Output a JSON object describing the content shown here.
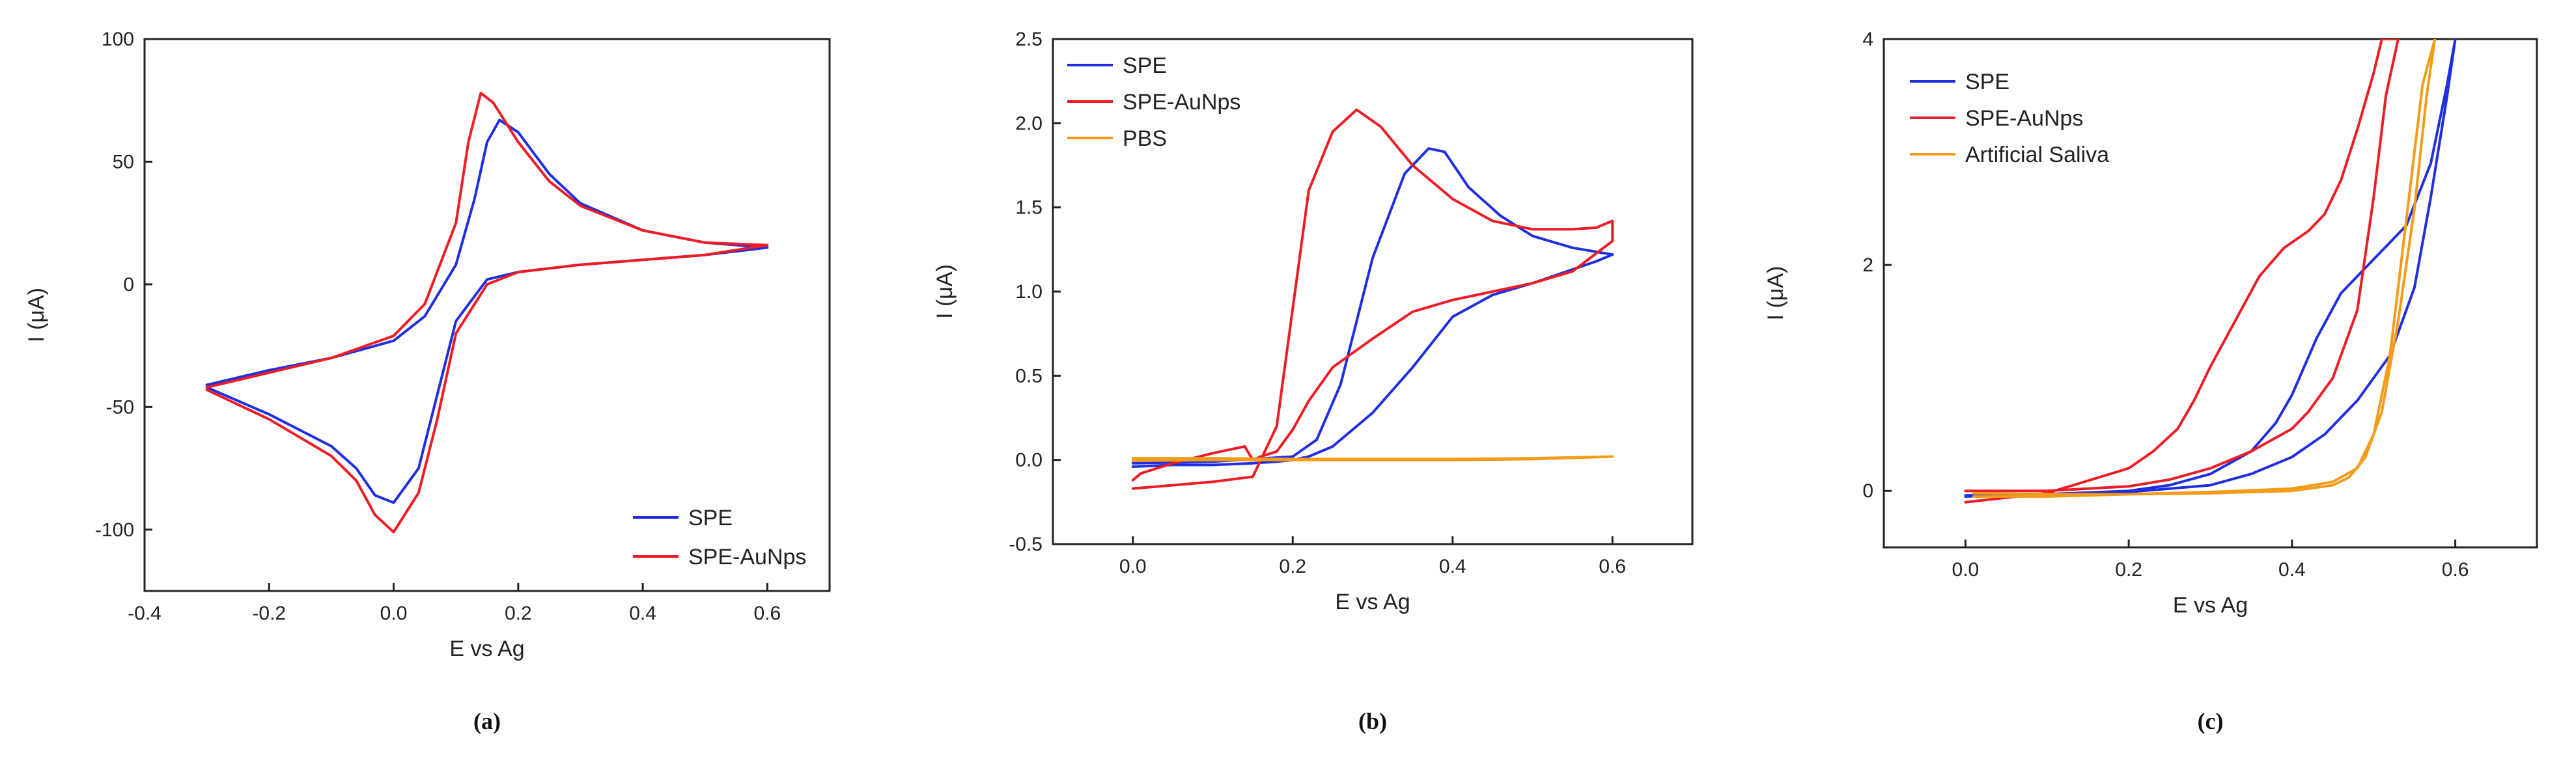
{
  "colors": {
    "blue": "#1f2fe0",
    "red": "#ee1c24",
    "orange": "#f39b1a"
  },
  "chart_data": [
    {
      "type": "line",
      "panel_label": "(a)",
      "xlabel": "E vs Ag",
      "ylabel": "I (μA)",
      "xlim": [
        -0.4,
        0.7
      ],
      "ylim": [
        -125,
        100
      ],
      "xticks": [
        -0.4,
        -0.2,
        0.0,
        0.2,
        0.4,
        0.6
      ],
      "xtick_labels": [
        "-0.4",
        "-0.2",
        "0.0",
        "0.2",
        "0.4",
        "0.6"
      ],
      "yticks": [
        -100,
        -50,
        0,
        50,
        100
      ],
      "ytick_labels": [
        "-100",
        "-50",
        "0",
        "50",
        "100"
      ],
      "legend_position": "bottom-right",
      "series": [
        {
          "name": "SPE",
          "color": "#1f2fe0",
          "x": [
            -0.3,
            -0.2,
            -0.1,
            0.0,
            0.05,
            0.1,
            0.13,
            0.15,
            0.17,
            0.2,
            0.25,
            0.3,
            0.4,
            0.5,
            0.6,
            0.5,
            0.4,
            0.3,
            0.2,
            0.15,
            0.1,
            0.07,
            0.04,
            0.0,
            -0.03,
            -0.06,
            -0.1,
            -0.2,
            -0.3
          ],
          "y": [
            -41,
            -35,
            -30,
            -23,
            -13,
            8,
            35,
            58,
            67,
            62,
            45,
            33,
            22,
            17,
            15,
            12,
            10,
            8,
            5,
            2,
            -15,
            -45,
            -75,
            -89,
            -86,
            -75,
            -66,
            -53,
            -42
          ]
        },
        {
          "name": "SPE-AuNps",
          "color": "#ee1c24",
          "x": [
            -0.3,
            -0.2,
            -0.1,
            0.0,
            0.05,
            0.1,
            0.12,
            0.14,
            0.16,
            0.2,
            0.25,
            0.3,
            0.4,
            0.5,
            0.6,
            0.5,
            0.4,
            0.3,
            0.2,
            0.15,
            0.1,
            0.07,
            0.04,
            0.0,
            -0.03,
            -0.06,
            -0.1,
            -0.2,
            -0.3
          ],
          "y": [
            -42,
            -36,
            -30,
            -21,
            -8,
            25,
            58,
            78,
            74,
            58,
            42,
            32,
            22,
            17,
            16,
            12,
            10,
            8,
            5,
            0,
            -20,
            -55,
            -85,
            -101,
            -94,
            -80,
            -70,
            -55,
            -43
          ]
        }
      ]
    },
    {
      "type": "line",
      "panel_label": "(b)",
      "xlabel": "E vs Ag",
      "ylabel": "I (μA)",
      "xlim": [
        -0.1,
        0.7
      ],
      "ylim": [
        -0.5,
        2.5
      ],
      "xticks": [
        0.0,
        0.2,
        0.4,
        0.6
      ],
      "xtick_labels": [
        "0.0",
        "0.2",
        "0.4",
        "0.6"
      ],
      "yticks": [
        -0.5,
        0.0,
        0.5,
        1.0,
        1.5,
        2.0,
        2.5
      ],
      "ytick_labels": [
        "-0.5",
        "0.0",
        "0.5",
        "1.0",
        "1.5",
        "2.0",
        "2.5"
      ],
      "legend_position": "top-left",
      "series": [
        {
          "name": "SPE",
          "color": "#1f2fe0",
          "x": [
            0.0,
            0.1,
            0.2,
            0.23,
            0.26,
            0.3,
            0.34,
            0.37,
            0.39,
            0.42,
            0.46,
            0.5,
            0.55,
            0.6,
            0.58,
            0.5,
            0.45,
            0.4,
            0.35,
            0.3,
            0.25,
            0.22,
            0.2,
            0.18,
            0.15,
            0.1,
            0.05,
            0.0
          ],
          "y": [
            -0.02,
            -0.01,
            0.02,
            0.12,
            0.45,
            1.2,
            1.7,
            1.85,
            1.83,
            1.62,
            1.45,
            1.33,
            1.26,
            1.22,
            1.18,
            1.05,
            0.98,
            0.85,
            0.55,
            0.28,
            0.08,
            0.02,
            0.0,
            -0.01,
            -0.02,
            -0.03,
            -0.03,
            -0.04
          ]
        },
        {
          "name": "SPE-AuNps",
          "color": "#ee1c24",
          "x": [
            0.0,
            0.05,
            0.1,
            0.15,
            0.18,
            0.2,
            0.22,
            0.25,
            0.28,
            0.31,
            0.35,
            0.4,
            0.45,
            0.5,
            0.55,
            0.58,
            0.6,
            0.6,
            0.55,
            0.5,
            0.45,
            0.4,
            0.35,
            0.3,
            0.25,
            0.22,
            0.2,
            0.18,
            0.16,
            0.15,
            0.14,
            0.12,
            0.1,
            0.05,
            0.01,
            0.0
          ],
          "y": [
            -0.17,
            -0.15,
            -0.13,
            -0.1,
            0.2,
            0.9,
            1.6,
            1.95,
            2.08,
            1.98,
            1.75,
            1.55,
            1.42,
            1.37,
            1.37,
            1.38,
            1.42,
            1.3,
            1.12,
            1.05,
            1.0,
            0.95,
            0.88,
            0.72,
            0.55,
            0.35,
            0.18,
            0.05,
            0.02,
            0.0,
            0.08,
            0.06,
            0.04,
            -0.02,
            -0.08,
            -0.12
          ]
        },
        {
          "name": "PBS",
          "color": "#f39b1a",
          "x": [
            0.0,
            0.1,
            0.2,
            0.3,
            0.4,
            0.5,
            0.6,
            0.5,
            0.4,
            0.3,
            0.2,
            0.1,
            0.0
          ],
          "y": [
            0.01,
            0.01,
            0.005,
            0.005,
            0.005,
            0.01,
            0.02,
            0.005,
            0.0,
            0.0,
            0.0,
            0.0,
            -0.005
          ]
        }
      ]
    },
    {
      "type": "line",
      "panel_label": "(c)",
      "xlabel": "E vs Ag",
      "ylabel": "I (μA)",
      "xlim": [
        -0.1,
        0.7
      ],
      "ylim": [
        -0.5,
        4
      ],
      "xticks": [
        0.0,
        0.2,
        0.4,
        0.6
      ],
      "xtick_labels": [
        "0.0",
        "0.2",
        "0.4",
        "0.6"
      ],
      "yticks": [
        0,
        2,
        4
      ],
      "ytick_labels": [
        "0",
        "2",
        "4"
      ],
      "legend_position": "top-left",
      "series": [
        {
          "name": "SPE",
          "color": "#1f2fe0",
          "x": [
            0.0,
            0.1,
            0.2,
            0.25,
            0.3,
            0.35,
            0.38,
            0.4,
            0.43,
            0.46,
            0.5,
            0.54,
            0.57,
            0.59,
            0.6,
            0.59,
            0.57,
            0.55,
            0.52,
            0.48,
            0.44,
            0.4,
            0.35,
            0.3,
            0.2,
            0.1,
            0.0
          ],
          "y": [
            -0.05,
            -0.03,
            0.0,
            0.05,
            0.15,
            0.35,
            0.6,
            0.85,
            1.35,
            1.75,
            2.05,
            2.35,
            2.9,
            3.6,
            4.0,
            3.5,
            2.6,
            1.8,
            1.2,
            0.8,
            0.5,
            0.3,
            0.15,
            0.05,
            -0.01,
            -0.03,
            -0.04
          ]
        },
        {
          "name": "SPE-AuNps",
          "color": "#ee1c24",
          "x": [
            0.0,
            0.1,
            0.2,
            0.23,
            0.26,
            0.28,
            0.3,
            0.33,
            0.36,
            0.39,
            0.42,
            0.44,
            0.46,
            0.48,
            0.5,
            0.51,
            0.52,
            0.53,
            0.515,
            0.5,
            0.48,
            0.45,
            0.42,
            0.4,
            0.35,
            0.3,
            0.25,
            0.2,
            0.1,
            0.0
          ],
          "y": [
            -0.1,
            -0.02,
            0.2,
            0.35,
            0.55,
            0.8,
            1.1,
            1.5,
            1.9,
            2.15,
            2.3,
            2.45,
            2.75,
            3.2,
            3.7,
            4.0,
            4.0,
            4.0,
            3.5,
            2.6,
            1.6,
            1.0,
            0.7,
            0.55,
            0.35,
            0.2,
            0.1,
            0.04,
            0.0,
            0.0
          ]
        },
        {
          "name": "Artificial Saliva",
          "color": "#f39b1a",
          "x": [
            0.01,
            0.1,
            0.2,
            0.3,
            0.4,
            0.45,
            0.48,
            0.5,
            0.52,
            0.54,
            0.56,
            0.575,
            0.565,
            0.55,
            0.53,
            0.51,
            0.49,
            0.47,
            0.45,
            0.4,
            0.3,
            0.2,
            0.1,
            0.01
          ],
          "y": [
            -0.05,
            -0.05,
            -0.03,
            -0.01,
            0.02,
            0.08,
            0.2,
            0.5,
            1.2,
            2.4,
            3.6,
            4.0,
            3.5,
            2.5,
            1.5,
            0.7,
            0.3,
            0.12,
            0.05,
            0.0,
            -0.02,
            -0.03,
            -0.03,
            -0.02
          ]
        }
      ]
    }
  ]
}
